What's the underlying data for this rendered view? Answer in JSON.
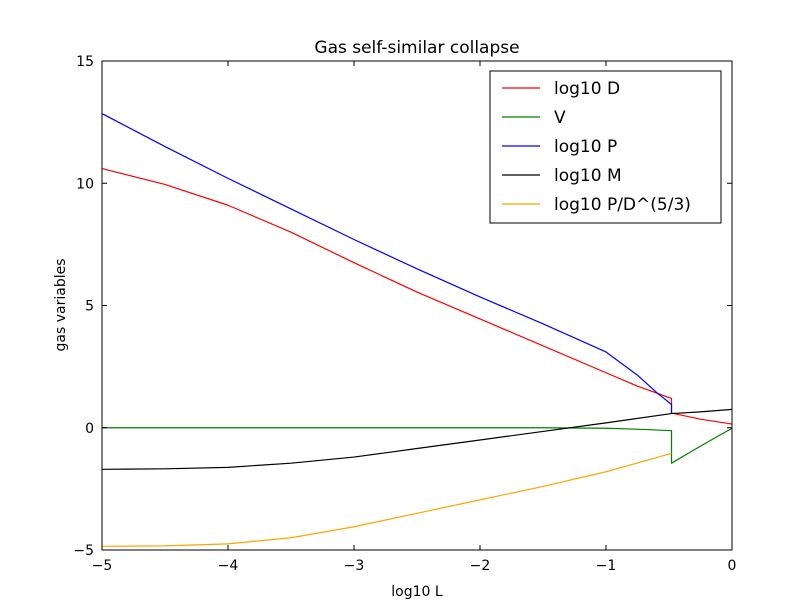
{
  "chart_data": {
    "type": "line",
    "title": "Gas self-similar collapse",
    "xlabel": "log10 L",
    "ylabel": "gas variables",
    "xlim": [
      -5,
      0
    ],
    "ylim": [
      -5,
      15
    ],
    "xticks": [
      -5,
      -4,
      -3,
      -2,
      -1,
      0
    ],
    "yticks": [
      -5,
      0,
      5,
      10,
      15
    ],
    "grid": false,
    "legend_position": "upper right",
    "shock_x": -0.48,
    "series": [
      {
        "name": "log10 D",
        "color": "#ff0000",
        "points": [
          [
            -5,
            10.6
          ],
          [
            -4.5,
            9.95
          ],
          [
            -4,
            9.1
          ],
          [
            -3.5,
            8.0
          ],
          [
            -3,
            6.75
          ],
          [
            -2.5,
            5.55
          ],
          [
            -2,
            4.45
          ],
          [
            -1.5,
            3.35
          ],
          [
            -1,
            2.25
          ],
          [
            -0.75,
            1.7
          ],
          [
            -0.48,
            1.2
          ],
          [
            -0.48,
            0.6
          ],
          [
            -0.25,
            0.35
          ],
          [
            0,
            0.15
          ]
        ]
      },
      {
        "name": "V",
        "color": "#008000",
        "points": [
          [
            -5,
            0
          ],
          [
            -4,
            0
          ],
          [
            -3,
            0
          ],
          [
            -2,
            0
          ],
          [
            -1.5,
            0
          ],
          [
            -1,
            -0.02
          ],
          [
            -0.7,
            -0.07
          ],
          [
            -0.48,
            -0.12
          ],
          [
            -0.48,
            -1.45
          ],
          [
            -0.25,
            -0.75
          ],
          [
            0,
            -0.02
          ]
        ]
      },
      {
        "name": "log10 P",
        "color": "#0000ff",
        "points": [
          [
            -5,
            12.85
          ],
          [
            -4.5,
            11.5
          ],
          [
            -4,
            10.2
          ],
          [
            -3.5,
            8.95
          ],
          [
            -3,
            7.7
          ],
          [
            -2.5,
            6.5
          ],
          [
            -2,
            5.35
          ],
          [
            -1.5,
            4.25
          ],
          [
            -1,
            3.1
          ],
          [
            -0.75,
            2.15
          ],
          [
            -0.6,
            1.45
          ],
          [
            -0.48,
            0.95
          ],
          [
            -0.48,
            0.6
          ]
        ]
      },
      {
        "name": "log10 M",
        "color": "#000000",
        "points": [
          [
            -5,
            -1.7
          ],
          [
            -4.5,
            -1.68
          ],
          [
            -4,
            -1.62
          ],
          [
            -3.5,
            -1.45
          ],
          [
            -3,
            -1.2
          ],
          [
            -2.5,
            -0.85
          ],
          [
            -2,
            -0.5
          ],
          [
            -1.5,
            -0.15
          ],
          [
            -1,
            0.2
          ],
          [
            -0.48,
            0.58
          ],
          [
            -0.25,
            0.65
          ],
          [
            0,
            0.75
          ]
        ]
      },
      {
        "name": "log10 P/D^(5/3)",
        "color": "#ffa500",
        "points": [
          [
            -5,
            -4.85
          ],
          [
            -4.5,
            -4.83
          ],
          [
            -4,
            -4.75
          ],
          [
            -3.5,
            -4.5
          ],
          [
            -3,
            -4.05
          ],
          [
            -2.5,
            -3.5
          ],
          [
            -2,
            -2.95
          ],
          [
            -1.5,
            -2.4
          ],
          [
            -1,
            -1.8
          ],
          [
            -0.48,
            -1.05
          ]
        ]
      }
    ]
  }
}
